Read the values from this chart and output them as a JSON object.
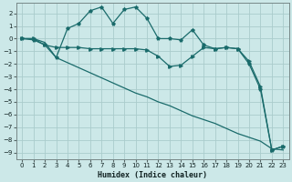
{
  "xlabel": "Humidex (Indice chaleur)",
  "background_color": "#cce8e8",
  "grid_color": "#aacccc",
  "line_color": "#1a6b6b",
  "xlim": [
    -0.5,
    23.5
  ],
  "ylim": [
    -9.5,
    2.8
  ],
  "yticks": [
    2,
    1,
    0,
    -1,
    -2,
    -3,
    -4,
    -5,
    -6,
    -7,
    -8,
    -9
  ],
  "xticks": [
    0,
    1,
    2,
    3,
    4,
    5,
    6,
    7,
    8,
    9,
    10,
    11,
    12,
    13,
    14,
    15,
    16,
    17,
    18,
    19,
    20,
    21,
    22,
    23
  ],
  "line1_x": [
    0,
    1,
    2,
    3,
    4,
    5,
    6,
    7,
    8,
    9,
    10,
    11,
    12,
    13,
    14,
    15,
    16,
    17,
    18,
    19,
    20,
    21,
    22,
    23
  ],
  "line1_y": [
    0.0,
    -0.1,
    -0.5,
    -1.5,
    0.8,
    1.2,
    2.2,
    2.5,
    1.2,
    2.3,
    2.5,
    1.6,
    0.0,
    0.0,
    -0.1,
    0.7,
    -0.5,
    -0.8,
    -0.7,
    -0.8,
    -2.0,
    -4.0,
    -8.8,
    -8.5
  ],
  "line2_x": [
    0,
    1,
    2,
    3,
    4,
    5,
    6,
    7,
    8,
    9,
    10,
    11,
    12,
    13,
    14,
    15,
    16,
    17,
    18,
    19,
    20,
    21,
    22,
    23
  ],
  "line2_y": [
    0.0,
    0.0,
    -0.3,
    -1.5,
    -1.9,
    -2.3,
    -2.7,
    -3.1,
    -3.5,
    -3.9,
    -4.3,
    -4.6,
    -5.0,
    -5.3,
    -5.7,
    -6.1,
    -6.4,
    -6.7,
    -7.1,
    -7.5,
    -7.8,
    -8.1,
    -8.7,
    -8.8
  ],
  "line3_x": [
    0,
    1,
    2,
    3,
    4,
    5,
    6,
    7,
    8,
    9,
    10,
    11,
    12,
    13,
    14,
    15,
    16,
    17,
    18,
    19,
    20,
    21,
    22,
    23
  ],
  "line3_y": [
    0.0,
    0.0,
    -0.5,
    -0.7,
    -0.7,
    -0.7,
    -0.8,
    -0.8,
    -0.8,
    -0.8,
    -0.8,
    -0.9,
    -1.4,
    -2.2,
    -2.1,
    -1.4,
    -0.7,
    -0.8,
    -0.7,
    -0.8,
    -1.8,
    -3.8,
    -8.8,
    -8.5
  ]
}
